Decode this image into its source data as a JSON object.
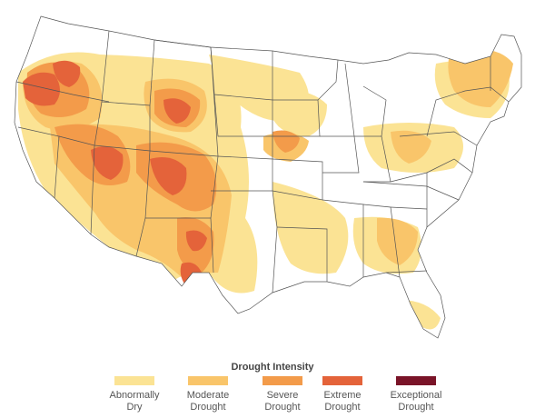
{
  "legend": {
    "title": "Drought Intensity",
    "items": [
      {
        "line1": "Abnormally",
        "line2": "Dry",
        "color": "#fbe394"
      },
      {
        "line1": "Moderate",
        "line2": "Drought",
        "color": "#f9c56a"
      },
      {
        "line1": "Severe",
        "line2": "Drought",
        "color": "#f39b4a"
      },
      {
        "line1": "Extreme",
        "line2": "Drought",
        "color": "#e4633a"
      },
      {
        "line1": "Exceptional",
        "line2": "Drought",
        "color": "#7a1428"
      }
    ]
  },
  "map": {
    "background": "#ffffff",
    "state_line_color": "#555555",
    "subject": "contiguous-united-states-drought"
  }
}
